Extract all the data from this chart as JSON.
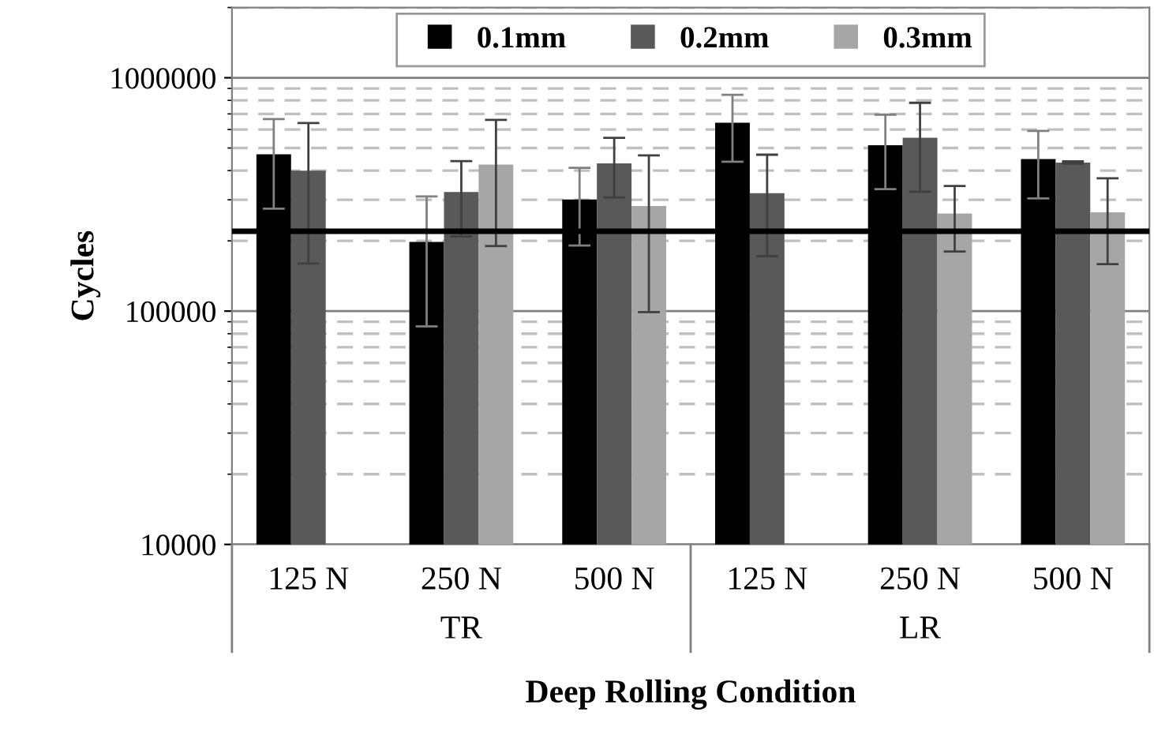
{
  "chart_data": {
    "type": "bar",
    "xlabel": "Deep Rolling Condition",
    "ylabel": "Cycles",
    "categories": [
      "125 N",
      "250 N",
      "500 N",
      "125 N",
      "250 N",
      "500 N"
    ],
    "annotations": [
      "TR",
      "LR"
    ],
    "series": [
      {
        "name": "0.1mm",
        "color": "#000000",
        "values": [
          470000,
          198000,
          301000,
          641000,
          514000,
          448000
        ],
        "errors": [
          195000,
          112000,
          110000,
          204000,
          181000,
          144000
        ]
      },
      {
        "name": "0.2mm",
        "color": "#595959",
        "values": [
          400000,
          324000,
          430000,
          320000,
          553000,
          433000
        ],
        "errors": [
          240000,
          115000,
          123000,
          148000,
          228000,
          5000
        ]
      },
      {
        "name": "0.3mm",
        "color": "#a6a6a6",
        "values": [
          null,
          425000,
          282000,
          null,
          262000,
          265000
        ],
        "errors": [
          null,
          235000,
          183000,
          null,
          82000,
          106000
        ]
      }
    ],
    "log": "y",
    "ylim": [
      10000,
      2000000
    ],
    "yticks": [
      10000,
      100000,
      1000000
    ],
    "ref_lines": [
      {
        "axis": "y",
        "value": 220000,
        "color": "#000000"
      }
    ],
    "grid": "y",
    "legend": "top"
  }
}
